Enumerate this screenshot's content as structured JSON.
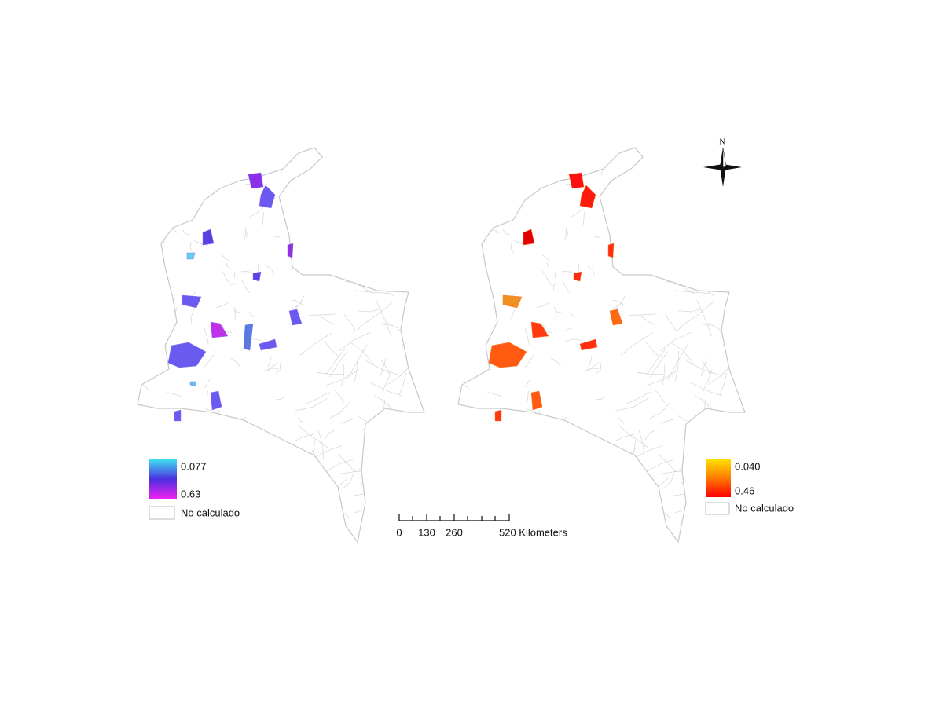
{
  "maps": [
    {
      "legend": {
        "top_label": "0.077",
        "bottom_label": "0.63",
        "no_data_label": "No calculado"
      }
    },
    {
      "legend": {
        "top_label": "0.040",
        "bottom_label": "0.46",
        "no_data_label": "No calculado"
      }
    }
  ],
  "scale_bar": {
    "labels": [
      "0",
      "130",
      "260",
      "520 Kilometers"
    ]
  },
  "north_arrow": {
    "label": "N"
  }
}
